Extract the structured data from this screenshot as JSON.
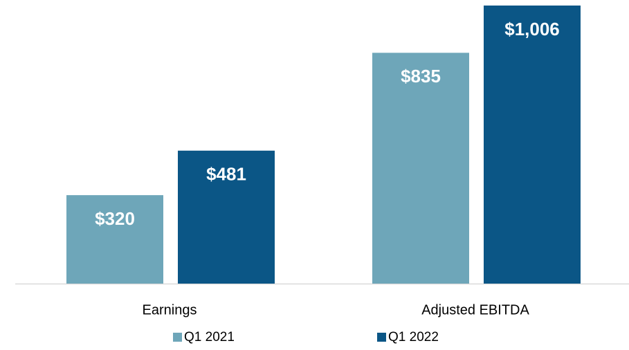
{
  "chart_data": {
    "type": "bar",
    "categories": [
      "Earnings",
      "Adjusted EBITDA"
    ],
    "series": [
      {
        "name": "Q1 2021",
        "color": "#6ea6b9",
        "values": [
          320,
          835
        ],
        "value_labels": [
          "$320",
          "$835"
        ]
      },
      {
        "name": "Q1 2022",
        "color": "#0b5686",
        "values": [
          481,
          1006
        ],
        "value_labels": [
          "$481",
          "$1,006"
        ]
      }
    ]
  }
}
